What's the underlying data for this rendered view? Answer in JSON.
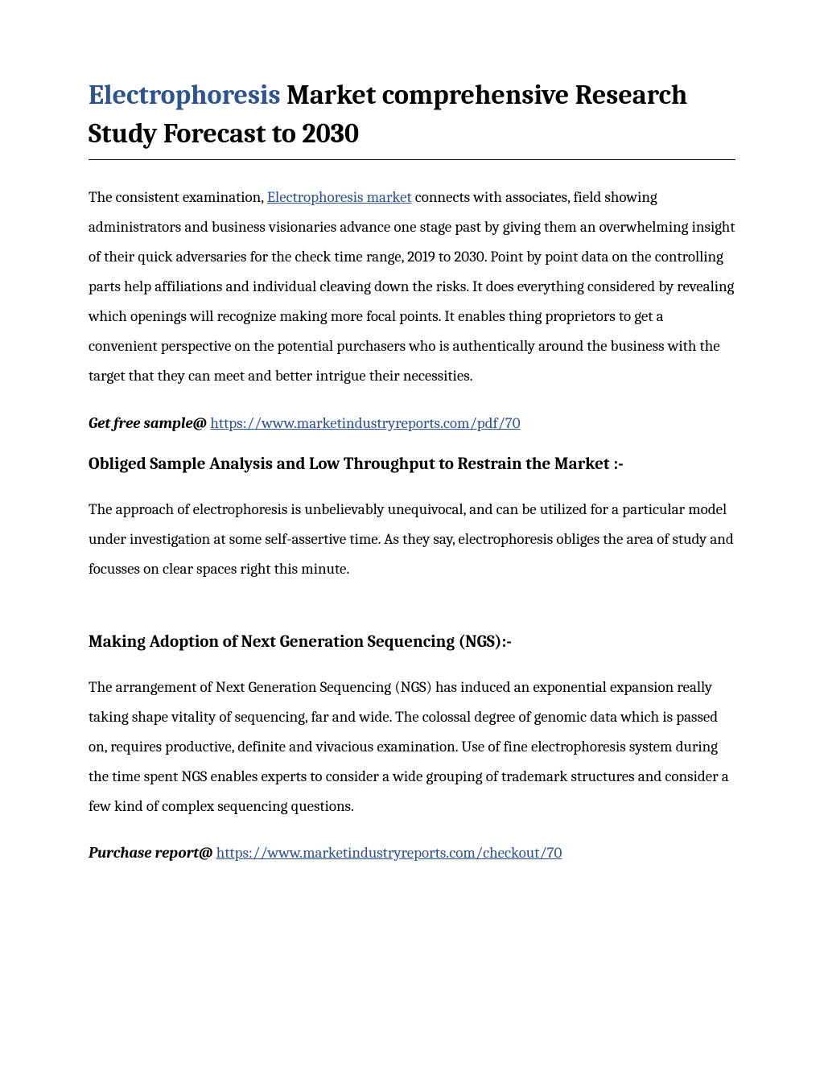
{
  "title": {
    "link_text": "Electrophoresis",
    "rest": " Market comprehensive Research Study Forecast to 2030"
  },
  "intro": {
    "before_link": "The consistent examination, ",
    "link_text": "Electrophoresis market",
    "after_link": " connects with associates, field showing administrators and business visionaries advance one stage past by giving them an overwhelming insight of their quick adversaries for the check time range, 2019 to 2030. Point by point data on the controlling parts help affiliations and individual cleaving down the risks. It does everything considered by revealing which openings will recognize making more focal points. It enables thing proprietors to get a convenient perspective on the potential purchasers who is authentically around the business with the target that they can meet and better intrigue their necessities."
  },
  "sample": {
    "label": "Get free sample@",
    "url": "https://www.marketindustryreports.com/pdf/70"
  },
  "section1": {
    "heading": "Obliged Sample Analysis and Low Throughput to Restrain the Market :-",
    "body": "The approach of electrophoresis is unbelievably unequivocal, and can be utilized for a particular model under investigation at some self-assertive time. As they say, electrophoresis obliges the area of study and focusses on clear spaces right this minute."
  },
  "section2": {
    "heading": "Making Adoption of Next Generation Sequencing (NGS):-",
    "body": "The arrangement of Next Generation Sequencing (NGS) has induced an exponential expansion really taking shape vitality of sequencing, far and wide. The colossal degree of genomic data which is passed on, requires productive, definite and vivacious examination. Use of fine electrophoresis system during the time spent NGS enables experts to consider a wide grouping of trademark structures and consider a few kind of complex sequencing questions."
  },
  "purchase": {
    "label": "Purchase report@",
    "url": "https://www.marketindustryreports.com/checkout/70"
  }
}
